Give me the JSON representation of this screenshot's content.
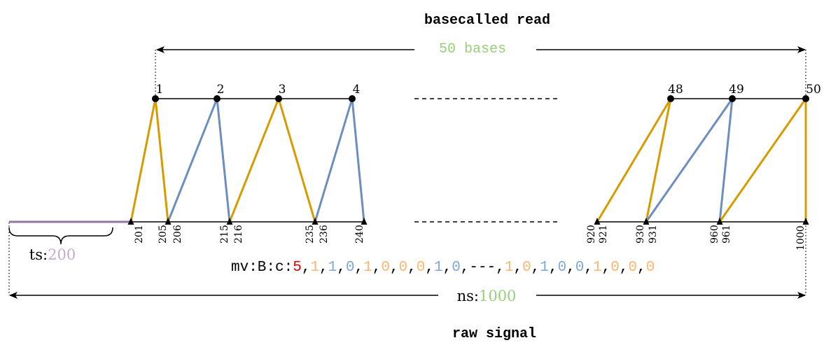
{
  "titles": {
    "read": "basecalled read",
    "signal": "raw signal"
  },
  "read_length": {
    "value": "50",
    "unit": "bases"
  },
  "ts": {
    "label": "ts:",
    "value": "200"
  },
  "ns": {
    "label": "ns:",
    "value": "1000"
  },
  "bases_left": [
    "1",
    "2",
    "3",
    "4"
  ],
  "bases_right": [
    "48",
    "49",
    "50"
  ],
  "signal_left": [
    "201",
    "205",
    "206",
    "215",
    "216",
    "235",
    "236",
    "240"
  ],
  "signal_right": [
    "920",
    "921",
    "930",
    "931",
    "960",
    "961",
    "1000"
  ],
  "mv": {
    "prefix": "mv:B:c:",
    "stride": "5",
    "comma": ",",
    "ellipsis": "---",
    "items": [
      {
        "text": "1",
        "color": "orange"
      },
      {
        "text": "1",
        "color": "blue"
      },
      {
        "text": "0",
        "color": "blue"
      },
      {
        "text": "1",
        "color": "orange"
      },
      {
        "text": "0",
        "color": "orange"
      },
      {
        "text": "0",
        "color": "orange"
      },
      {
        "text": "0",
        "color": "orange"
      },
      {
        "text": "1",
        "color": "blue"
      },
      {
        "text": "0",
        "color": "blue"
      }
    ],
    "items_after": [
      {
        "text": "1",
        "color": "orange"
      },
      {
        "text": "0",
        "color": "orange"
      },
      {
        "text": "1",
        "color": "blue"
      },
      {
        "text": "0",
        "color": "blue"
      },
      {
        "text": "0",
        "color": "blue"
      },
      {
        "text": "1",
        "color": "orange"
      },
      {
        "text": "0",
        "color": "orange"
      },
      {
        "text": "0",
        "color": "orange"
      },
      {
        "text": "0",
        "color": "orange"
      }
    ]
  },
  "colors": {
    "orange_line": "#D79B00",
    "blue_line": "#6C8EBF",
    "orange_text": "#FFB570",
    "blue_text": "#7EA6E0",
    "green_text": "#97D077",
    "red_text": "#E00000",
    "purple_text": "#C3ABD0",
    "purple_line": "#9673A6"
  }
}
